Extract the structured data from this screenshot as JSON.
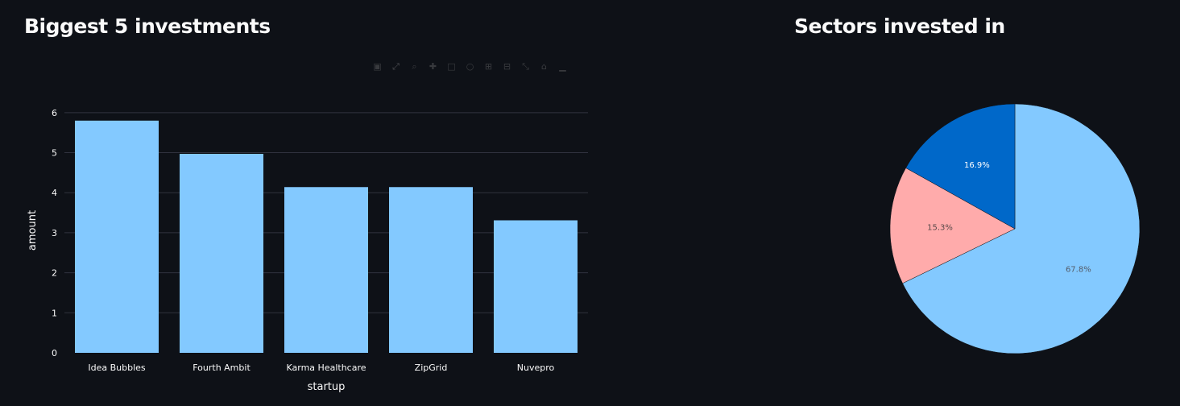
{
  "headings": {
    "bar": "Biggest 5 investments",
    "pie": "Sectors invested in"
  },
  "toolbar": {
    "icons": [
      "camera-icon",
      "expand-icon",
      "zoom-icon",
      "pan-icon",
      "select-icon",
      "lasso-icon",
      "zoom-in-icon",
      "zoom-out-icon",
      "autoscale-icon",
      "reset-icon",
      "plotly-logo-icon"
    ]
  },
  "chart_data": [
    {
      "type": "bar",
      "title": "",
      "categories": [
        "Idea Bubbles",
        "Fourth Ambit",
        "Karma Healthcare",
        "ZipGrid",
        "Nuvepro"
      ],
      "values": [
        5.8,
        4.97,
        4.14,
        4.14,
        3.31
      ],
      "xlabel": "startup",
      "ylabel": "amount",
      "ylim": [
        0,
        6.6
      ],
      "yticks": [
        0,
        1,
        2,
        3,
        4,
        5,
        6
      ],
      "grid": true,
      "bar_color": "#83c9ff",
      "grid_color": "#31333f"
    },
    {
      "type": "pie",
      "title": "",
      "slices": [
        {
          "value": 67.8,
          "label": "67.8%",
          "color": "#83c9ff",
          "text_color": "#555d6b"
        },
        {
          "value": 15.3,
          "label": "15.3%",
          "color": "#ffabab",
          "text_color": "#5a4a4a"
        },
        {
          "value": 16.9,
          "label": "16.9%",
          "color": "#0068c9",
          "text_color": "#ffffff"
        }
      ],
      "start_angle_deg": 0,
      "direction": "clockwise"
    }
  ]
}
